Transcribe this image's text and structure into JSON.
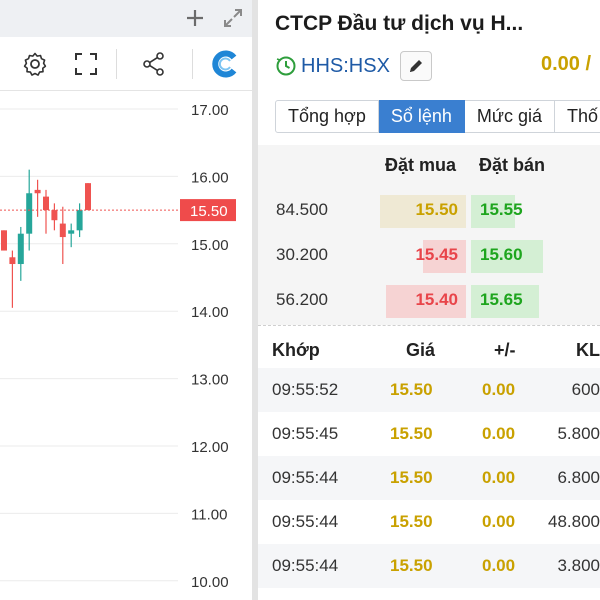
{
  "chart": {
    "y_ticks": [
      "17.00",
      "16.00",
      "15.00",
      "14.00",
      "13.00",
      "12.00",
      "11.00",
      "10.00"
    ],
    "tick_values": [
      17,
      16,
      15,
      14,
      13,
      12,
      11,
      10
    ],
    "current_price_label": "15.50",
    "current_price": 15.5,
    "up_color": "#26a69a",
    "down_color": "#ef5350",
    "candles": [
      {
        "o": 15.2,
        "h": 15.2,
        "l": 14.9,
        "c": 14.9
      },
      {
        "o": 14.8,
        "h": 14.9,
        "l": 14.05,
        "c": 14.7
      },
      {
        "o": 14.7,
        "h": 15.25,
        "l": 14.45,
        "c": 15.15
      },
      {
        "o": 15.15,
        "h": 16.1,
        "l": 14.9,
        "c": 15.75
      },
      {
        "o": 15.8,
        "h": 15.95,
        "l": 15.4,
        "c": 15.75
      },
      {
        "o": 15.7,
        "h": 15.8,
        "l": 15.15,
        "c": 15.5
      },
      {
        "o": 15.5,
        "h": 15.6,
        "l": 15.2,
        "c": 15.35
      },
      {
        "o": 15.3,
        "h": 15.55,
        "l": 14.7,
        "c": 15.1
      },
      {
        "o": 15.15,
        "h": 15.3,
        "l": 14.95,
        "c": 15.2
      },
      {
        "o": 15.2,
        "h": 15.6,
        "l": 15.1,
        "c": 15.5
      },
      {
        "o": 15.9,
        "h": 15.9,
        "l": 15.5,
        "c": 15.5
      }
    ]
  },
  "icons": {
    "top": [
      "plus-icon",
      "expand-icon"
    ],
    "toolbar": [
      "settings-icon",
      "fullscreen-icon",
      "share-icon",
      "logo-icon"
    ],
    "brand_color": "#1f86d6"
  },
  "info": {
    "company_name": "CTCP Đầu tư dịch vụ H...",
    "ticker": "HHS:HSX",
    "last_price": "0.00 /",
    "price_color": "#c9a100"
  },
  "tabs": [
    {
      "label": "Tổng hợp",
      "active": false
    },
    {
      "label": "Sổ lệnh",
      "active": true
    },
    {
      "label": "Mức giá",
      "active": false
    },
    {
      "label": "Thố",
      "active": false
    }
  ],
  "orderbook": {
    "headers": {
      "buy": "Đặt mua",
      "sell": "Đặt bán"
    },
    "rows": [
      {
        "volume": "84.500",
        "bid": "15.50",
        "ask": "15.55",
        "bid_color": "#c9a100",
        "bid_fill": 0.72,
        "ask_fill": 0.55
      },
      {
        "volume": "30.200",
        "bid": "15.45",
        "ask": "15.60",
        "bid_color": "#e8454a",
        "bid_fill": 0.36,
        "ask_fill": 0.9
      },
      {
        "volume": "56.200",
        "bid": "15.40",
        "ask": "15.65",
        "bid_color": "#e8454a",
        "bid_fill": 0.67,
        "ask_fill": 0.85
      }
    ]
  },
  "trades": {
    "headers": {
      "time": "Khớp",
      "price": "Giá",
      "change": "+/-",
      "volume": "KL"
    },
    "rows": [
      {
        "time": "09:55:52",
        "price": "15.50",
        "change": "0.00",
        "volume": "600"
      },
      {
        "time": "09:55:45",
        "price": "15.50",
        "change": "0.00",
        "volume": "5.800"
      },
      {
        "time": "09:55:44",
        "price": "15.50",
        "change": "0.00",
        "volume": "6.800"
      },
      {
        "time": "09:55:44",
        "price": "15.50",
        "change": "0.00",
        "volume": "48.800"
      },
      {
        "time": "09:55:44",
        "price": "15.50",
        "change": "0.00",
        "volume": "3.800"
      }
    ]
  }
}
